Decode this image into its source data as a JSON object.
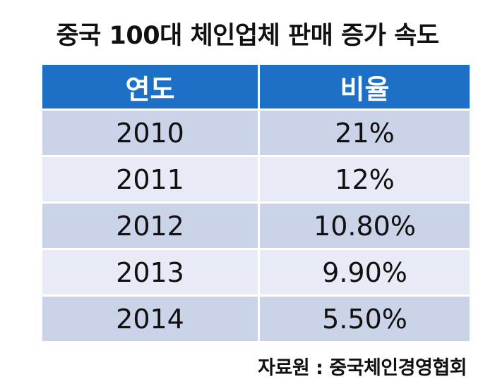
{
  "title": "중국 100대 체인업체 판매 증가 속도",
  "source": "자료원 : 중국체인경영협회",
  "chart_data": {
    "type": "table",
    "title": "중국 100대 체인업체 판매 증가 속도",
    "columns": [
      "연도",
      "비율"
    ],
    "rows": [
      [
        "2010",
        "21%"
      ],
      [
        "2011",
        "12%"
      ],
      [
        "2012",
        "10.80%"
      ],
      [
        "2013",
        "9.90%"
      ],
      [
        "2014",
        "5.50%"
      ]
    ],
    "values": [
      21,
      12,
      10.8,
      9.9,
      5.5
    ],
    "colors": {
      "header": "#1e6fc6",
      "row_odd": "#cbd3e9",
      "row_even": "#e8ebf5"
    }
  }
}
